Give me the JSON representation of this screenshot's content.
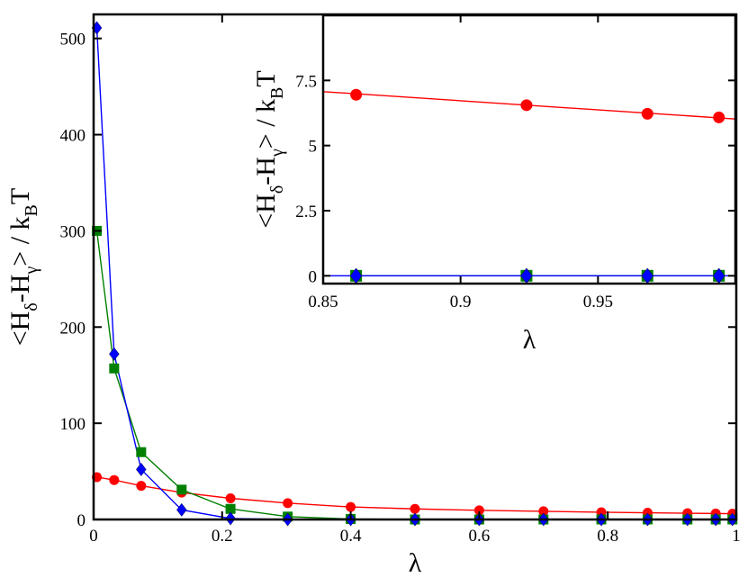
{
  "chart_data": [
    {
      "type": "line",
      "xlabel": "λ",
      "ylabel_parts": [
        "<H",
        "δ",
        "-H",
        "γ",
        "> / k",
        "B",
        "T"
      ],
      "xlim": [
        0,
        1
      ],
      "ylim": [
        0,
        525
      ],
      "xticks": [
        0,
        0.2,
        0.4,
        0.6,
        0.8,
        1
      ],
      "xtick_labels": [
        "0",
        "0.2",
        "0.4",
        "0.6",
        "0.8",
        "1"
      ],
      "yticks": [
        0,
        100,
        200,
        300,
        400,
        500
      ],
      "ytick_labels": [
        "0",
        "100",
        "200",
        "300",
        "400",
        "500"
      ],
      "series": [
        {
          "color": "#ff0000",
          "marker": "circle",
          "x": [
            0.005,
            0.032,
            0.074,
            0.137,
            0.213,
            0.302,
            0.4,
            0.5,
            0.6,
            0.7,
            0.79,
            0.862,
            0.924,
            0.968,
            0.994
          ],
          "y": [
            44,
            41,
            35,
            28,
            22,
            17,
            13,
            11,
            9.5,
            8.5,
            7.5,
            7,
            6.5,
            6.2,
            6
          ]
        },
        {
          "color": "#008000",
          "marker": "square",
          "x": [
            0.005,
            0.032,
            0.074,
            0.137,
            0.213,
            0.302,
            0.4,
            0.5,
            0.6,
            0.7,
            0.79,
            0.862,
            0.924,
            0.968,
            0.994
          ],
          "y": [
            300,
            157,
            70,
            31,
            11,
            3,
            0.5,
            0,
            0,
            0,
            0,
            0,
            0,
            0,
            0
          ]
        },
        {
          "color": "#0000ff",
          "marker": "diamond",
          "x": [
            0.005,
            0.032,
            0.074,
            0.137,
            0.213,
            0.302,
            0.4,
            0.5,
            0.6,
            0.7,
            0.79,
            0.862,
            0.924,
            0.968,
            0.994
          ],
          "y": [
            511,
            172,
            52,
            10,
            1,
            0,
            0,
            0,
            0,
            0,
            0,
            0,
            0,
            0,
            0
          ]
        }
      ]
    },
    {
      "type": "line",
      "xlabel": "λ",
      "ylabel_parts": [
        "<H",
        "δ",
        "-H",
        "γ",
        "> / k",
        "B",
        "T"
      ],
      "xlim": [
        0.85,
        1
      ],
      "ylim": [
        -0.3,
        10
      ],
      "xticks": [
        0.85,
        0.9,
        0.95
      ],
      "xtick_labels": [
        "0.85",
        "0.9",
        "0.95"
      ],
      "yticks": [
        0,
        2.5,
        5,
        7.5
      ],
      "ytick_labels": [
        "0",
        "2.5",
        "5",
        "7.5"
      ],
      "series": [
        {
          "color": "#ff0000",
          "marker": "circle",
          "x": [
            0.862,
            0.924,
            0.968,
            0.994
          ],
          "y": [
            6.95,
            6.55,
            6.22,
            6.08
          ],
          "fit": [
            [
              0.85,
              7.07
            ],
            [
              1.0,
              6.02
            ]
          ]
        },
        {
          "color": "#008000",
          "marker": "square",
          "x": [
            0.862,
            0.924,
            0.968,
            0.994
          ],
          "y": [
            0,
            0,
            0,
            0
          ]
        },
        {
          "color": "#0000ff",
          "marker": "diamond",
          "x": [
            0.862,
            0.924,
            0.968,
            0.994
          ],
          "y": [
            0,
            0,
            0,
            0
          ],
          "fit": [
            [
              0.85,
              0
            ],
            [
              1.0,
              0
            ]
          ]
        }
      ]
    }
  ]
}
